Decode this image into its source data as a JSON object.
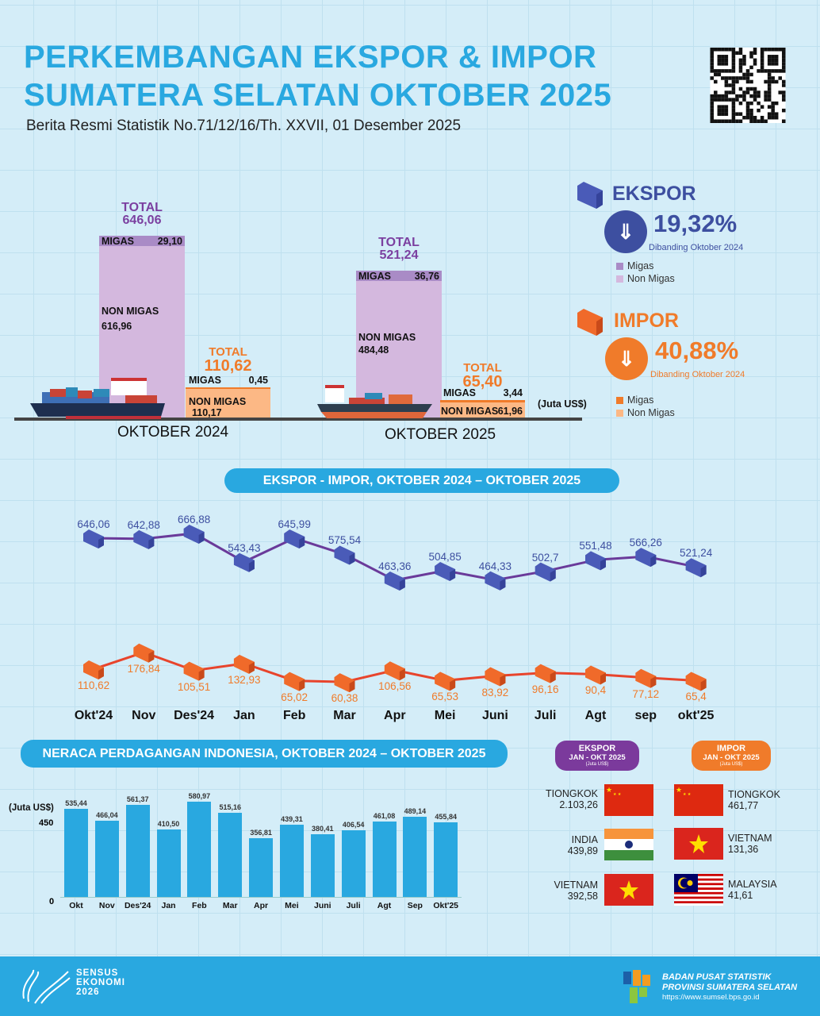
{
  "header": {
    "title_line1": "PERKEMBANGAN EKSPOR & IMPOR",
    "title_line2": "SUMATERA SELATAN OKTOBER 2025",
    "subtitle": "Berita Resmi Statistik No.71/12/16/Th. XXVII, 01 Desember 2025"
  },
  "colors": {
    "accent": "#29a8e0",
    "export": "#3d4fa0",
    "export_total": "#7b3fa0",
    "export_migas": "#a98bc6",
    "export_nonmigas": "#d4b8de",
    "import": "#f07b2a",
    "import_migas": "#f07b2a",
    "import_nonmigas": "#fcb885",
    "import_line": "#e8442c",
    "export_line": "#6a3a9a"
  },
  "summary": {
    "export": {
      "title": "EKSPOR",
      "change": "19,32%",
      "direction": "down",
      "note": "Dibanding Oktober 2024",
      "legend": [
        "Migas",
        "Non Migas"
      ]
    },
    "import": {
      "title": "IMPOR",
      "change": "40,88%",
      "direction": "down",
      "note": "Dibanding Oktober 2024",
      "legend": [
        "Migas",
        "Non Migas"
      ]
    }
  },
  "chart_data": [
    {
      "type": "bar",
      "stacked": true,
      "unit": "(Juta US$)",
      "categories": [
        "OKTOBER 2024",
        "OKTOBER 2025"
      ],
      "total_label": "TOTAL",
      "migas_label": "MIGAS",
      "nonmigas_label": "NON MIGAS",
      "groups": [
        {
          "period": "OKTOBER 2024",
          "export": {
            "total": "646,06",
            "migas": "29,10",
            "nonmigas": "616,96",
            "total_value": 646.06,
            "migas_value": 29.1
          },
          "import": {
            "total": "110,62",
            "migas": "0,45",
            "nonmigas": "110,17",
            "total_value": 110.62,
            "migas_value": 0.45
          }
        },
        {
          "period": "OKTOBER 2025",
          "export": {
            "total": "521,24",
            "migas": "36,76",
            "nonmigas": "484,48",
            "total_value": 521.24,
            "migas_value": 36.76
          },
          "import": {
            "total": "65,40",
            "migas": "3,44",
            "nonmigas": "61,96",
            "total_value": 65.4,
            "migas_value": 3.44
          }
        }
      ]
    },
    {
      "type": "line",
      "title": "EKSPOR - IMPOR, OKTOBER 2024 – OKTOBER 2025",
      "categories": [
        "Okt'24",
        "Nov",
        "Des'24",
        "Jan",
        "Feb",
        "Mar",
        "Apr",
        "Mei",
        "Juni",
        "Juli",
        "Agt",
        "sep",
        "okt'25"
      ],
      "series": [
        {
          "key": "export",
          "values": [
            646.06,
            642.88,
            666.88,
            543.43,
            645.99,
            575.54,
            463.36,
            504.85,
            464.33,
            502.7,
            551.48,
            566.26,
            521.24
          ],
          "labels": [
            "646,06",
            "642,88",
            "666,88",
            "543,43",
            "645,99",
            "575,54",
            "463,36",
            "504,85",
            "464,33",
            "502,7",
            "551,48",
            "566,26",
            "521,24"
          ]
        },
        {
          "key": "import",
          "values": [
            110.62,
            176.84,
            105.51,
            132.93,
            65.02,
            60.38,
            106.56,
            65.53,
            83.92,
            96.16,
            90.4,
            77.12,
            65.4
          ],
          "labels": [
            "110,62",
            "176,84",
            "105,51",
            "132,93",
            "65,02",
            "60,38",
            "106,56",
            "65,53",
            "83,92",
            "96,16",
            "90,4",
            "77,12",
            "65,4"
          ]
        }
      ]
    },
    {
      "type": "bar",
      "title": "NERACA PERDAGANGAN INDONESIA, OKTOBER 2024 – OKTOBER 2025",
      "ylabel": "(Juta US$)",
      "yticks": [
        "0",
        "450"
      ],
      "ylim": [
        0,
        600
      ],
      "categories": [
        "Okt",
        "Nov",
        "Des'24",
        "Jan",
        "Feb",
        "Mar",
        "Apr",
        "Mei",
        "Juni",
        "Juli",
        "Agt",
        "Sep",
        "Okt'25"
      ],
      "values": [
        535.44,
        466.04,
        561.37,
        410.5,
        580.97,
        515.16,
        356.81,
        439.31,
        380.41,
        406.54,
        461.08,
        489.14,
        455.84
      ],
      "labels": [
        "535,44",
        "466,04",
        "561,37",
        "410,50",
        "580,97",
        "515,16",
        "356,81",
        "439,31",
        "380,41",
        "406,54",
        "461,08",
        "489,14",
        "455,84"
      ]
    }
  ],
  "partners": {
    "export": {
      "title": "EKSPOR",
      "period": "JAN - OKT 2025",
      "unit": "(Juta US$)",
      "items": [
        {
          "country": "TIONGKOK",
          "value": "2.103,26",
          "flag": "china"
        },
        {
          "country": "INDIA",
          "value": "439,89",
          "flag": "india"
        },
        {
          "country": "VIETNAM",
          "value": "392,58",
          "flag": "vietnam"
        }
      ]
    },
    "import": {
      "title": "IMPOR",
      "period": "JAN - OKT 2025",
      "unit": "(Juta US$)",
      "items": [
        {
          "country": "TIONGKOK",
          "value": "461,77",
          "flag": "china"
        },
        {
          "country": "VIETNAM",
          "value": "131,36",
          "flag": "vietnam"
        },
        {
          "country": "MALAYSIA",
          "value": "41,61",
          "flag": "malaysia"
        }
      ]
    }
  },
  "footer": {
    "census_logo": [
      "SENSUS",
      "EKONOMI",
      "2026"
    ],
    "org_line1": "BADAN PUSAT STATISTIK",
    "org_line2": "PROVINSI SUMATERA SELATAN",
    "url": "https://www.sumsel.bps.go.id"
  }
}
